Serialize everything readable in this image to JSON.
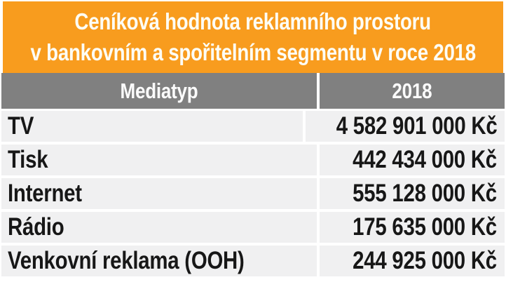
{
  "title": {
    "line1": "Ceníková hodnota reklamního prostoru",
    "line2": "v bankovním a spořitelním segmentu v roce 2018"
  },
  "table": {
    "headers": [
      "Mediatyp",
      "2018"
    ],
    "rows": [
      {
        "label": "TV",
        "value": "4 582 901 000 Kč"
      },
      {
        "label": "Tisk",
        "value": "442 434 000 Kč"
      },
      {
        "label": "Internet",
        "value": "555 128 000 Kč"
      },
      {
        "label": "Rádio",
        "value": "175 635 000 Kč"
      },
      {
        "label": "Venkovní reklama (OOH)",
        "value": "244 925 000 Kč"
      }
    ]
  },
  "colors": {
    "accent_orange": "#F89C1E",
    "header_gray": "#808080",
    "row_background": "#F0F0F1",
    "title_text": "#FDFDF5",
    "body_text": "#171717"
  },
  "chart_data": {
    "type": "table",
    "title": "Ceníková hodnota reklamního prostoru v bankovním a spořitelním segmentu v roce 2018",
    "columns": [
      "Mediatyp",
      "2018"
    ],
    "categories": [
      "TV",
      "Tisk",
      "Internet",
      "Rádio",
      "Venkovní reklama (OOH)"
    ],
    "values_kc": [
      4582901000,
      442434000,
      555128000,
      175635000,
      244925000
    ],
    "values_display": [
      "4 582 901 000 Kč",
      "442 434 000 Kč",
      "555 128 000 Kč",
      "175 635 000 Kč",
      "244 925 000 Kč"
    ],
    "currency": "Kč",
    "year": "2018"
  }
}
